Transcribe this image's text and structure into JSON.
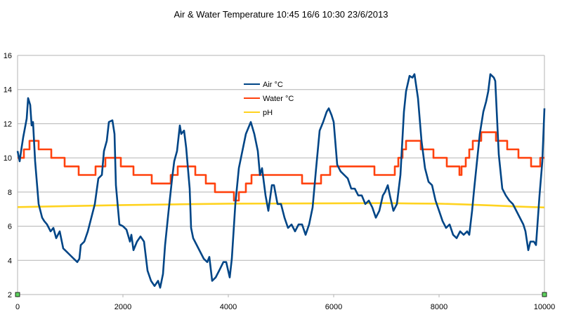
{
  "chart_data": {
    "type": "line",
    "title": "Air & Water Temperature 10:45 16/6     10:30 23/6/2013",
    "xlabel": "",
    "ylabel": "",
    "xlim": [
      0,
      10000
    ],
    "ylim": [
      2,
      16
    ],
    "x_ticks": [
      "0",
      "2000",
      "4000",
      "6000",
      "8000",
      "10000"
    ],
    "y_ticks": [
      "2",
      "4",
      "6",
      "8",
      "10",
      "12",
      "14",
      "16"
    ],
    "grid": "horizontal",
    "legend_placement": "top-center",
    "series": [
      {
        "name": "Air °C",
        "color": "#004586",
        "style": "line",
        "points": [
          [
            0,
            10.4
          ],
          [
            40,
            9.8
          ],
          [
            67,
            10.4
          ],
          [
            107,
            11.2
          ],
          [
            173,
            12.3
          ],
          [
            200,
            13.5
          ],
          [
            240,
            13.1
          ],
          [
            267,
            11.9
          ],
          [
            293,
            12.1
          ],
          [
            333,
            9.8
          ],
          [
            400,
            7.3
          ],
          [
            467,
            6.5
          ],
          [
            507,
            6.3
          ],
          [
            560,
            6.1
          ],
          [
            627,
            5.7
          ],
          [
            680,
            5.9
          ],
          [
            733,
            5.3
          ],
          [
            800,
            5.7
          ],
          [
            867,
            4.7
          ],
          [
            933,
            4.5
          ],
          [
            1000,
            4.3
          ],
          [
            1067,
            4.1
          ],
          [
            1133,
            3.9
          ],
          [
            1173,
            4.1
          ],
          [
            1200,
            4.9
          ],
          [
            1267,
            5.1
          ],
          [
            1333,
            5.7
          ],
          [
            1400,
            6.5
          ],
          [
            1467,
            7.3
          ],
          [
            1533,
            8.8
          ],
          [
            1600,
            9.0
          ],
          [
            1640,
            10.4
          ],
          [
            1693,
            11.0
          ],
          [
            1733,
            12.1
          ],
          [
            1800,
            12.2
          ],
          [
            1840,
            11.4
          ],
          [
            1867,
            8.4
          ],
          [
            1933,
            6.1
          ],
          [
            2000,
            6.0
          ],
          [
            2067,
            5.8
          ],
          [
            2133,
            5.1
          ],
          [
            2160,
            5.5
          ],
          [
            2200,
            4.6
          ],
          [
            2267,
            5.1
          ],
          [
            2333,
            5.4
          ],
          [
            2400,
            5.1
          ],
          [
            2467,
            3.4
          ],
          [
            2533,
            2.8
          ],
          [
            2600,
            2.5
          ],
          [
            2667,
            2.8
          ],
          [
            2707,
            2.4
          ],
          [
            2760,
            3.2
          ],
          [
            2800,
            4.9
          ],
          [
            2867,
            6.9
          ],
          [
            2933,
            8.8
          ],
          [
            2973,
            9.8
          ],
          [
            3027,
            10.4
          ],
          [
            3080,
            11.9
          ],
          [
            3107,
            11.4
          ],
          [
            3160,
            11.6
          ],
          [
            3200,
            10.6
          ],
          [
            3267,
            8.2
          ],
          [
            3293,
            5.9
          ],
          [
            3333,
            5.3
          ],
          [
            3400,
            4.9
          ],
          [
            3467,
            4.5
          ],
          [
            3533,
            4.1
          ],
          [
            3600,
            3.9
          ],
          [
            3640,
            4.2
          ],
          [
            3693,
            2.8
          ],
          [
            3760,
            3.0
          ],
          [
            3827,
            3.4
          ],
          [
            3907,
            3.9
          ],
          [
            3960,
            3.9
          ],
          [
            4027,
            3.0
          ],
          [
            4067,
            4.1
          ],
          [
            4133,
            7.3
          ],
          [
            4200,
            9.4
          ],
          [
            4267,
            10.4
          ],
          [
            4333,
            11.4
          ],
          [
            4400,
            11.9
          ],
          [
            4427,
            12.1
          ],
          [
            4493,
            11.4
          ],
          [
            4560,
            10.4
          ],
          [
            4600,
            9.0
          ],
          [
            4640,
            9.4
          ],
          [
            4707,
            7.8
          ],
          [
            4760,
            6.9
          ],
          [
            4827,
            8.4
          ],
          [
            4867,
            8.4
          ],
          [
            4933,
            7.3
          ],
          [
            5000,
            7.3
          ],
          [
            5067,
            6.5
          ],
          [
            5133,
            5.9
          ],
          [
            5200,
            6.1
          ],
          [
            5267,
            5.7
          ],
          [
            5333,
            6.1
          ],
          [
            5400,
            6.1
          ],
          [
            5467,
            5.5
          ],
          [
            5533,
            6.1
          ],
          [
            5600,
            7.1
          ],
          [
            5667,
            9.4
          ],
          [
            5733,
            11.6
          ],
          [
            5800,
            12.1
          ],
          [
            5867,
            12.7
          ],
          [
            5907,
            12.9
          ],
          [
            5960,
            12.5
          ],
          [
            6000,
            12.1
          ],
          [
            6067,
            9.6
          ],
          [
            6133,
            9.2
          ],
          [
            6200,
            9.0
          ],
          [
            6267,
            8.8
          ],
          [
            6333,
            8.2
          ],
          [
            6400,
            8.2
          ],
          [
            6467,
            7.8
          ],
          [
            6533,
            7.8
          ],
          [
            6600,
            7.3
          ],
          [
            6667,
            7.5
          ],
          [
            6733,
            7.1
          ],
          [
            6800,
            6.5
          ],
          [
            6867,
            6.9
          ],
          [
            6933,
            7.8
          ],
          [
            6973,
            8.0
          ],
          [
            7027,
            8.4
          ],
          [
            7067,
            7.8
          ],
          [
            7133,
            6.9
          ],
          [
            7200,
            7.3
          ],
          [
            7267,
            9.0
          ],
          [
            7333,
            12.7
          ],
          [
            7373,
            13.9
          ],
          [
            7440,
            14.8
          ],
          [
            7493,
            14.7
          ],
          [
            7533,
            14.9
          ],
          [
            7600,
            13.5
          ],
          [
            7667,
            11.0
          ],
          [
            7733,
            9.4
          ],
          [
            7800,
            8.6
          ],
          [
            7867,
            8.4
          ],
          [
            7933,
            7.5
          ],
          [
            8000,
            6.9
          ],
          [
            8067,
            6.3
          ],
          [
            8133,
            5.9
          ],
          [
            8200,
            6.1
          ],
          [
            8267,
            5.5
          ],
          [
            8333,
            5.3
          ],
          [
            8400,
            5.7
          ],
          [
            8467,
            5.5
          ],
          [
            8533,
            5.7
          ],
          [
            8573,
            5.5
          ],
          [
            8627,
            6.9
          ],
          [
            8667,
            8.2
          ],
          [
            8733,
            10.2
          ],
          [
            8773,
            11.4
          ],
          [
            8840,
            12.7
          ],
          [
            8893,
            13.3
          ],
          [
            8933,
            13.9
          ],
          [
            8973,
            14.9
          ],
          [
            9040,
            14.7
          ],
          [
            9067,
            14.5
          ],
          [
            9133,
            10.2
          ],
          [
            9200,
            8.2
          ],
          [
            9267,
            7.8
          ],
          [
            9333,
            7.5
          ],
          [
            9400,
            7.3
          ],
          [
            9467,
            6.9
          ],
          [
            9533,
            6.5
          ],
          [
            9600,
            6.1
          ],
          [
            9640,
            5.7
          ],
          [
            9693,
            4.6
          ],
          [
            9733,
            5.1
          ],
          [
            9800,
            5.1
          ],
          [
            9840,
            4.9
          ],
          [
            9907,
            7.8
          ],
          [
            9960,
            9.8
          ],
          [
            10000,
            12.9
          ]
        ]
      },
      {
        "name": "Water °C",
        "color": "#ff420e",
        "style": "step",
        "points": [
          [
            0,
            10
          ],
          [
            120,
            10.5
          ],
          [
            227,
            11
          ],
          [
            400,
            10.5
          ],
          [
            640,
            10
          ],
          [
            893,
            9.5
          ],
          [
            1160,
            9
          ],
          [
            1480,
            9.5
          ],
          [
            1667,
            10
          ],
          [
            1960,
            9.5
          ],
          [
            2200,
            9
          ],
          [
            2547,
            8.5
          ],
          [
            2907,
            9
          ],
          [
            3040,
            9.5
          ],
          [
            3373,
            9
          ],
          [
            3573,
            8.5
          ],
          [
            3747,
            8
          ],
          [
            4107,
            7.5
          ],
          [
            4200,
            8
          ],
          [
            4333,
            8.5
          ],
          [
            4440,
            9
          ],
          [
            5400,
            8.5
          ],
          [
            5760,
            9
          ],
          [
            5933,
            9.5
          ],
          [
            6773,
            9
          ],
          [
            7160,
            9.5
          ],
          [
            7227,
            10
          ],
          [
            7307,
            10.5
          ],
          [
            7373,
            11
          ],
          [
            7653,
            10.5
          ],
          [
            7893,
            10
          ],
          [
            8147,
            9.5
          ],
          [
            8387,
            9
          ],
          [
            8427,
            9.5
          ],
          [
            8507,
            10
          ],
          [
            8573,
            10.5
          ],
          [
            8640,
            11
          ],
          [
            8800,
            11.5
          ],
          [
            9080,
            11
          ],
          [
            9293,
            10.5
          ],
          [
            9507,
            10
          ],
          [
            9747,
            9.5
          ],
          [
            9920,
            10
          ],
          [
            10000,
            10
          ]
        ]
      },
      {
        "name": "pH",
        "color": "#ffd320",
        "style": "line",
        "points": [
          [
            0,
            7.12
          ],
          [
            1000,
            7.18
          ],
          [
            2000,
            7.24
          ],
          [
            3000,
            7.28
          ],
          [
            4000,
            7.32
          ],
          [
            5000,
            7.33
          ],
          [
            6000,
            7.34
          ],
          [
            7000,
            7.35
          ],
          [
            7500,
            7.33
          ],
          [
            8000,
            7.32
          ],
          [
            8500,
            7.27
          ],
          [
            9000,
            7.22
          ],
          [
            9500,
            7.15
          ],
          [
            10000,
            7.1
          ]
        ]
      }
    ]
  }
}
